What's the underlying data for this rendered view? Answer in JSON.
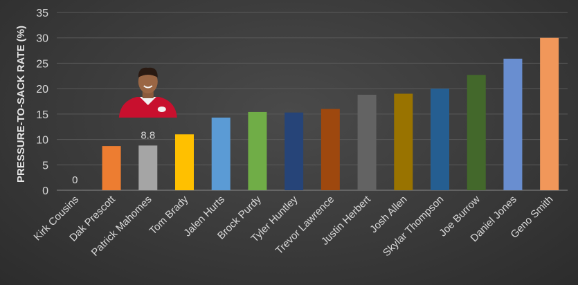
{
  "chart_data": {
    "type": "bar",
    "title": "",
    "xlabel": "",
    "ylabel": "PRESSURE-TO-SACK RATE (%)",
    "ylim": [
      0,
      35
    ],
    "yticks": [
      0,
      5,
      10,
      15,
      20,
      25,
      30,
      35
    ],
    "grid": true,
    "categories": [
      "Kirk Cousins",
      "Dak Prescott",
      "Patrick Mahomes",
      "Tom Brady",
      "Jalen Hurts",
      "Brock Purdy",
      "Tyler Huntley",
      "Trevor Lawrence",
      "Justin Herbert",
      "Josh Allen",
      "Skylar Thompson",
      "Joe Burrow",
      "Daniel Jones",
      "Geno Smith"
    ],
    "values": [
      0,
      8.7,
      8.8,
      11.0,
      14.3,
      15.4,
      15.3,
      16.0,
      18.8,
      19.0,
      20.0,
      22.7,
      25.9,
      30.0
    ],
    "colors": [
      "#5b9bd5",
      "#ed7d31",
      "#a5a5a5",
      "#ffc000",
      "#5b9bd5",
      "#70ad47",
      "#264478",
      "#9e480e",
      "#636363",
      "#997300",
      "#255e91",
      "#43682b",
      "#698ed0",
      "#f1975a"
    ],
    "data_labels": [
      {
        "category": "Kirk Cousins",
        "text": "0"
      },
      {
        "category": "Patrick Mahomes",
        "text": "8.8"
      }
    ],
    "highlight_image": {
      "category": "Patrick Mahomes",
      "description": "player-headshot-red-jersey"
    }
  }
}
